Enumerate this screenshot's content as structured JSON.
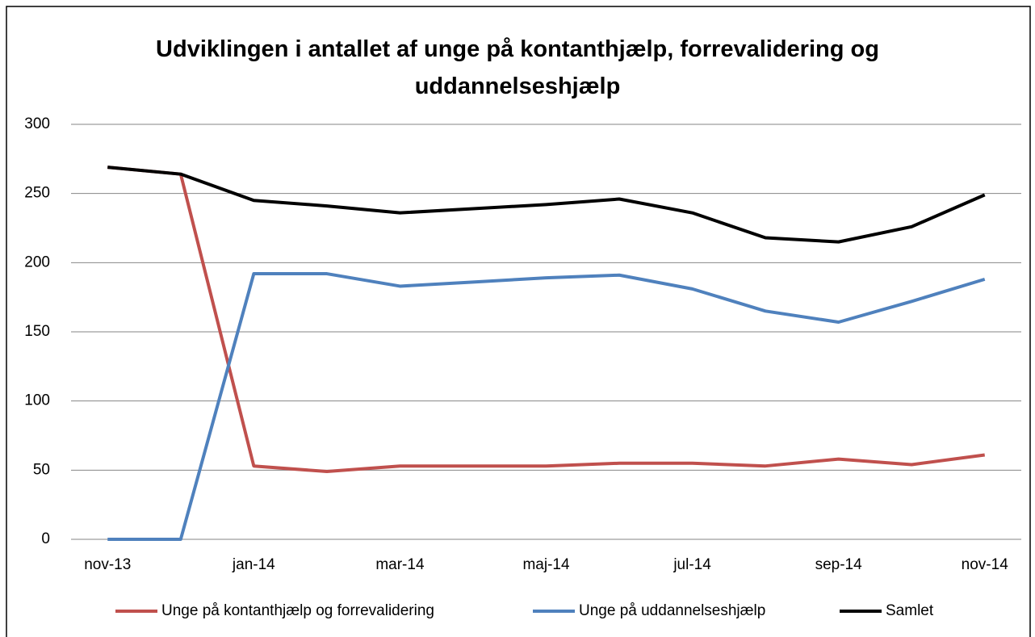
{
  "chart_data": {
    "type": "line",
    "title": "Udviklingen i antallet af unge på kontanthjælp, forrevalidering og uddannelseshjælp",
    "categories": [
      "nov-13",
      null,
      "jan-14",
      null,
      "mar-14",
      null,
      "maj-14",
      null,
      "jul-14",
      null,
      "sep-14",
      null,
      "nov-14"
    ],
    "series": [
      {
        "name": "Unge på kontanthjælp og forrevalidering",
        "color": "#c0504d",
        "values": [
          269,
          264,
          53,
          49,
          53,
          53,
          53,
          55,
          55,
          53,
          58,
          54,
          61
        ]
      },
      {
        "name": "Unge på uddannelseshjælp",
        "color": "#4f81bd",
        "values": [
          0,
          0,
          192,
          192,
          183,
          186,
          189,
          191,
          181,
          165,
          157,
          172,
          188
        ]
      },
      {
        "name": "Samlet",
        "color": "#000000",
        "values": [
          269,
          264,
          245,
          241,
          236,
          239,
          242,
          246,
          236,
          218,
          215,
          226,
          249
        ]
      }
    ],
    "ylim": [
      0,
      300
    ],
    "yticks": [
      0,
      50,
      100,
      150,
      200,
      250,
      300
    ],
    "grid": true,
    "legend": "bottom"
  }
}
